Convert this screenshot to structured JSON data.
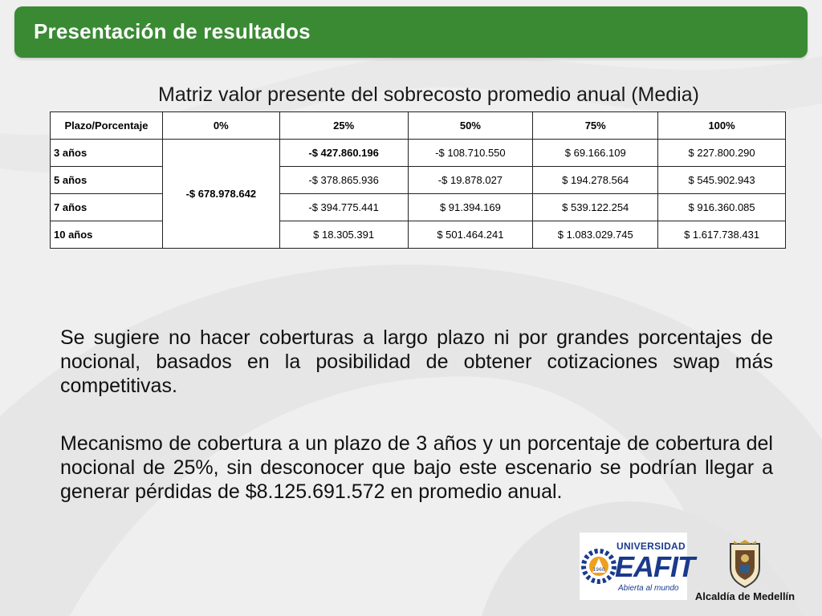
{
  "header": {
    "title": "Presentación de resultados"
  },
  "subtitle": "Matriz valor presente del sobrecosto promedio anual (Media)",
  "table": {
    "headers": [
      "Plazo/Porcentaje",
      "0%",
      "25%",
      "50%",
      "75%",
      "100%"
    ],
    "zero_value": "-$ 678.978.642",
    "rows": [
      {
        "plazo": "3 años",
        "c25": "-$ 427.860.196",
        "c50": "-$ 108.710.550",
        "c75": "$ 69.166.109",
        "c100": "$ 227.800.290"
      },
      {
        "plazo": "5 años",
        "c25": "-$ 378.865.936",
        "c50": "-$ 19.878.027",
        "c75": "$ 194.278.564",
        "c100": "$ 545.902.943"
      },
      {
        "plazo": "7 años",
        "c25": "-$ 394.775.441",
        "c50": "$ 91.394.169",
        "c75": "$ 539.122.254",
        "c100": "$ 916.360.085"
      },
      {
        "plazo": "10 años",
        "c25": "$ 18.305.391",
        "c50": "$ 501.464.241",
        "c75": "$ 1.083.029.745",
        "c100": "$ 1.617.738.431"
      }
    ]
  },
  "paragraphs": [
    "Se sugiere no hacer coberturas a largo plazo ni por grandes porcentajes de nocional, basados en la posibilidad de obtener cotizaciones swap más competitivas.",
    "Mecanismo de cobertura a un plazo de 3 años y un porcentaje de cobertura del nocional de 25%, sin desconocer que bajo este escenario se podrían llegar a generar pérdidas de $8.125.691.572 en promedio anual."
  ],
  "logos": {
    "eafit": {
      "top": "UNIVERSIDAD",
      "main": "EAFIT",
      "slogan": "Abierta al mundo",
      "seal_year": "1960"
    },
    "medellin": {
      "label": "Alcaldía de Medellín"
    }
  },
  "colors": {
    "header_green": "#3a8a34",
    "eafit_blue": "#1a3a8c",
    "eafit_orange": "#f0a020"
  }
}
